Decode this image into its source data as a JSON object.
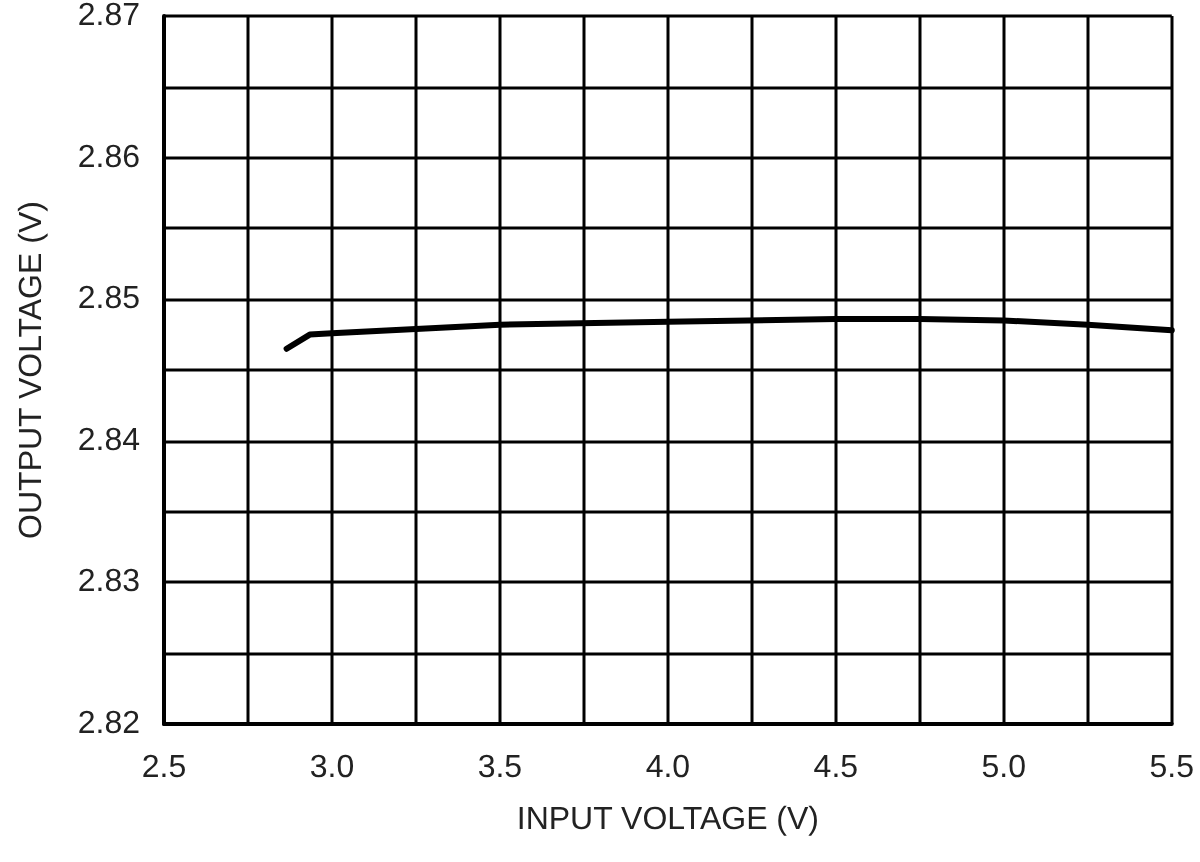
{
  "chart_data": {
    "type": "line",
    "xlabel": "INPUT VOLTAGE (V)",
    "ylabel": "OUTPUT VOLTAGE (V)",
    "x": [
      2.865,
      2.934,
      3.0,
      3.5,
      4.0,
      4.5,
      4.75,
      5.0,
      5.25,
      5.5
    ],
    "series": [
      {
        "color": "#000000",
        "values": [
          2.8465,
          2.8475,
          2.8476,
          2.8482,
          2.8484,
          2.8486,
          2.8486,
          2.8485,
          2.8482,
          2.8478
        ]
      }
    ],
    "xlim": [
      2.5,
      5.5
    ],
    "xticks": [
      2.5,
      {
        "value": 2.75,
        "label": null
      },
      {
        "value": 3,
        "label": "3.0"
      },
      {
        "value": 3.25,
        "label": null
      },
      3.5,
      {
        "value": 3.75,
        "label": null
      },
      {
        "value": 4,
        "label": "4.0"
      },
      {
        "value": 4.25,
        "label": null
      },
      4.5,
      {
        "value": 4.75,
        "label": null
      },
      {
        "value": 5,
        "label": "5.0"
      },
      {
        "value": 5.25,
        "label": null
      },
      5.5
    ],
    "ylim": [
      2.82,
      2.87
    ],
    "yticks": [
      2.82,
      {
        "value": 2.825,
        "label": null
      },
      2.83,
      {
        "value": 2.835,
        "label": null
      },
      2.84,
      {
        "value": 2.845,
        "label": null
      },
      2.85,
      {
        "value": 2.855,
        "label": null
      },
      2.86,
      {
        "value": 2.865,
        "label": null
      },
      2.87
    ],
    "grid": true,
    "marker": "none",
    "line_style": "solid"
  }
}
